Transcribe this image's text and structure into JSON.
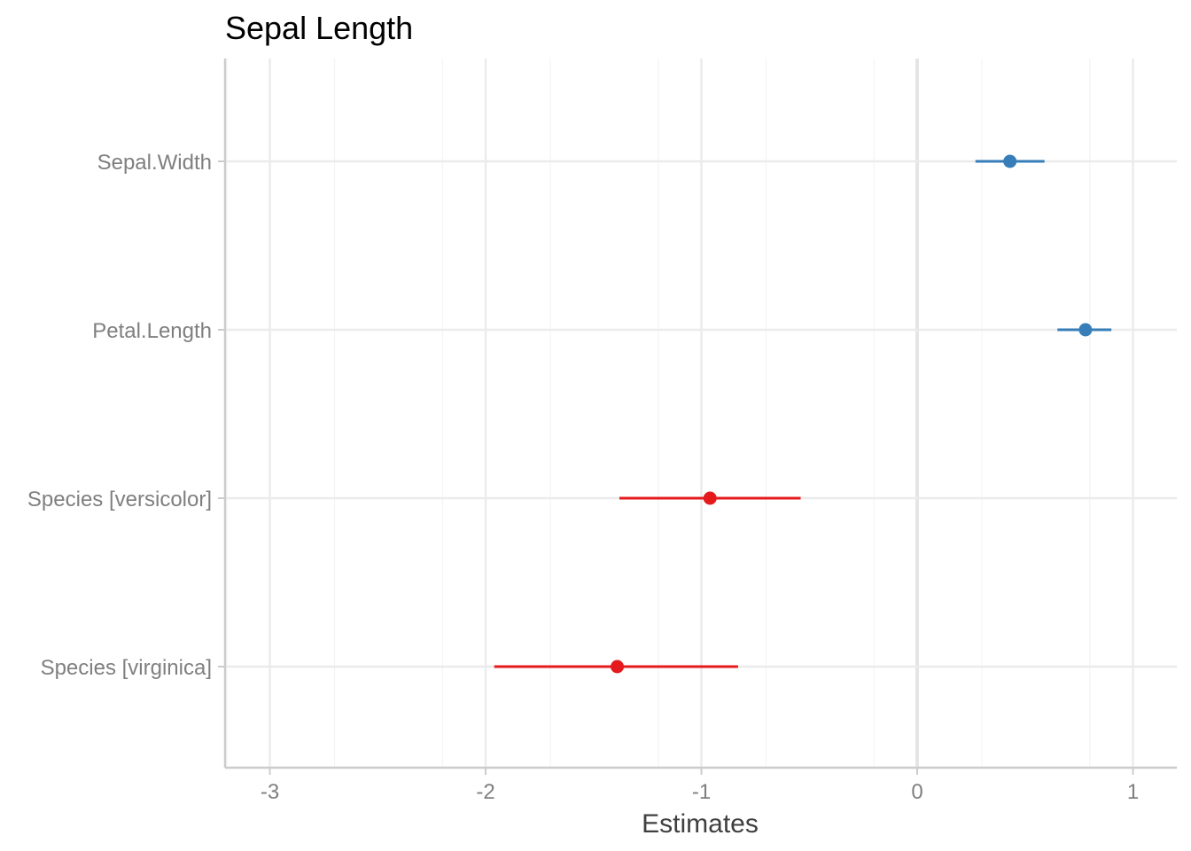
{
  "chart_data": {
    "type": "scatter",
    "title": "Sepal Length",
    "xlabel": "Estimates",
    "ylabel": "",
    "xlim": [
      -3.2,
      1.2
    ],
    "x_ticks": [
      -3,
      -2,
      -1,
      0,
      1
    ],
    "x_tick_labels": [
      "-3",
      "-2",
      "-1",
      "0",
      "1"
    ],
    "reference_line_x": 0,
    "grid": true,
    "legend": "none",
    "terms": [
      {
        "label": "Sepal.Width",
        "estimate": 0.43,
        "conf_low": 0.27,
        "conf_high": 0.59,
        "direction": "positive"
      },
      {
        "label": "Petal.Length",
        "estimate": 0.78,
        "conf_low": 0.65,
        "conf_high": 0.9,
        "direction": "positive"
      },
      {
        "label": "Species [versicolor]",
        "estimate": -0.96,
        "conf_low": -1.38,
        "conf_high": -0.54,
        "direction": "negative"
      },
      {
        "label": "Species [virginica]",
        "estimate": -1.39,
        "conf_low": -1.96,
        "conf_high": -0.83,
        "direction": "negative"
      }
    ],
    "colors": {
      "positive": "#377eb8",
      "negative": "#e41a1c",
      "grid_major": "#ebebeb",
      "grid_minor": "#f4f4f4",
      "zero_line": "#e5e5e5",
      "axis": "#cccccc"
    }
  }
}
